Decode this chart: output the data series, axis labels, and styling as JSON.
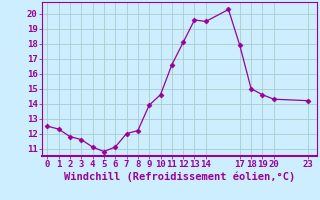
{
  "x": [
    0,
    1,
    2,
    3,
    4,
    5,
    6,
    7,
    8,
    9,
    10,
    11,
    12,
    13,
    14,
    16,
    17,
    18,
    19,
    20,
    23
  ],
  "y": [
    12.5,
    12.3,
    11.8,
    11.6,
    11.1,
    10.8,
    11.1,
    12.0,
    12.2,
    13.9,
    14.6,
    16.6,
    18.1,
    19.6,
    19.5,
    20.3,
    17.9,
    15.0,
    14.6,
    14.3,
    14.2
  ],
  "line_color": "#990099",
  "marker": "D",
  "marker_size": 2.5,
  "bg_color": "#cceeff",
  "grid_color": "#aacccc",
  "xlabel": "Windchill (Refroidissement éolien,°C)",
  "xlabel_color": "#990099",
  "tick_color": "#990099",
  "xlim": [
    -0.5,
    23.8
  ],
  "ylim": [
    10.5,
    20.8
  ],
  "yticks": [
    11,
    12,
    13,
    14,
    15,
    16,
    17,
    18,
    19,
    20
  ],
  "xticks": [
    0,
    1,
    2,
    3,
    4,
    5,
    6,
    7,
    8,
    9,
    10,
    11,
    12,
    13,
    14,
    17,
    18,
    19,
    20,
    23
  ],
  "xtick_labels": [
    "0",
    "1",
    "2",
    "3",
    "4",
    "5",
    "6",
    "7",
    "8",
    "9",
    "10",
    "11",
    "12",
    "13",
    "14",
    "17",
    "18",
    "19",
    "20",
    "23"
  ],
  "spine_color": "#990099",
  "font_size": 6.5,
  "xlabel_fontsize": 7.5
}
